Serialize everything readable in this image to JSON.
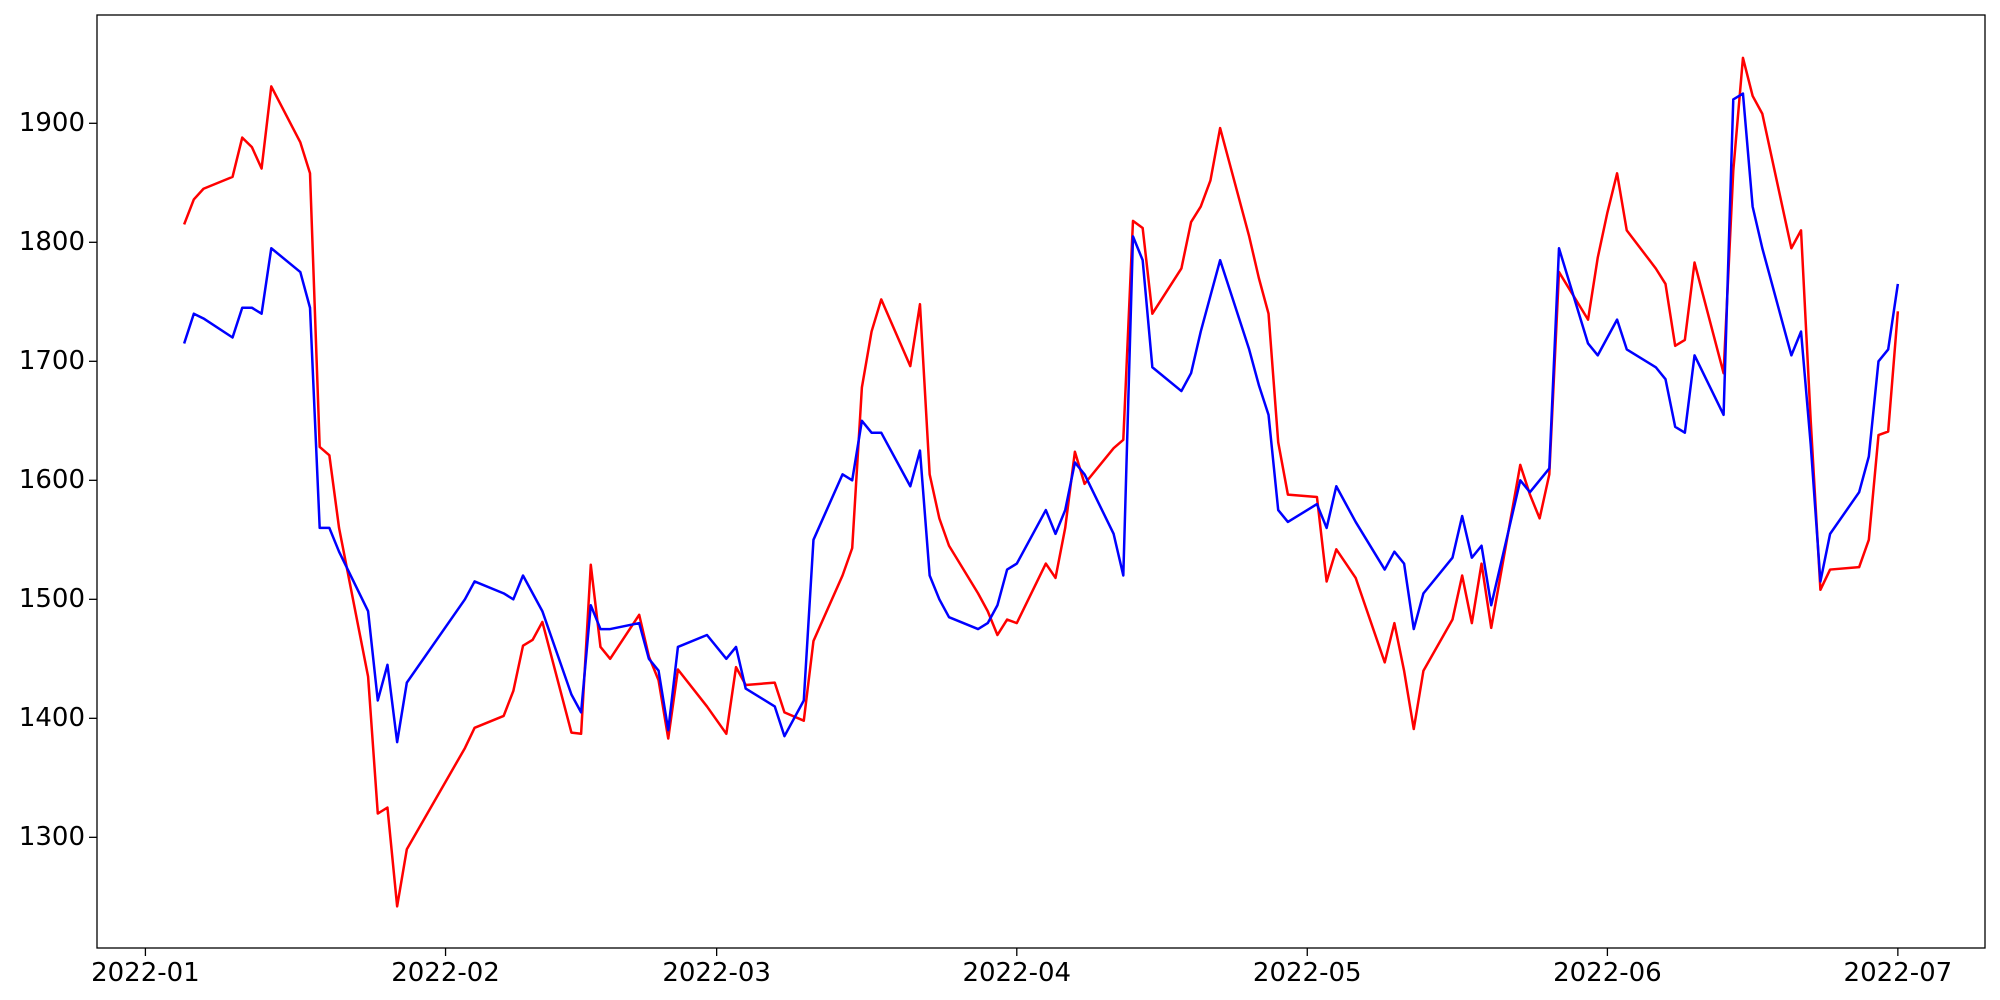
{
  "chart_data": {
    "type": "line",
    "x": [
      "2022-01-05",
      "2022-01-06",
      "2022-01-07",
      "2022-01-10",
      "2022-01-11",
      "2022-01-12",
      "2022-01-13",
      "2022-01-14",
      "2022-01-17",
      "2022-01-18",
      "2022-01-19",
      "2022-01-20",
      "2022-01-21",
      "2022-01-24",
      "2022-01-25",
      "2022-01-26",
      "2022-01-27",
      "2022-01-28",
      "2022-02-03",
      "2022-02-04",
      "2022-02-07",
      "2022-02-08",
      "2022-02-09",
      "2022-02-10",
      "2022-02-11",
      "2022-02-14",
      "2022-02-15",
      "2022-02-16",
      "2022-02-17",
      "2022-02-18",
      "2022-02-21",
      "2022-02-22",
      "2022-02-23",
      "2022-02-24",
      "2022-02-25",
      "2022-02-28",
      "2022-03-02",
      "2022-03-03",
      "2022-03-04",
      "2022-03-07",
      "2022-03-08",
      "2022-03-10",
      "2022-03-11",
      "2022-03-14",
      "2022-03-15",
      "2022-03-16",
      "2022-03-17",
      "2022-03-18",
      "2022-03-21",
      "2022-03-22",
      "2022-03-23",
      "2022-03-24",
      "2022-03-25",
      "2022-03-28",
      "2022-03-29",
      "2022-03-30",
      "2022-03-31",
      "2022-04-01",
      "2022-04-04",
      "2022-04-05",
      "2022-04-06",
      "2022-04-07",
      "2022-04-08",
      "2022-04-11",
      "2022-04-12",
      "2022-04-13",
      "2022-04-14",
      "2022-04-15",
      "2022-04-18",
      "2022-04-19",
      "2022-04-20",
      "2022-04-21",
      "2022-04-22",
      "2022-04-25",
      "2022-04-26",
      "2022-04-27",
      "2022-04-28",
      "2022-04-29",
      "2022-05-02",
      "2022-05-03",
      "2022-05-04",
      "2022-05-05",
      "2022-05-06",
      "2022-05-09",
      "2022-05-10",
      "2022-05-11",
      "2022-05-12",
      "2022-05-13",
      "2022-05-16",
      "2022-05-17",
      "2022-05-18",
      "2022-05-19",
      "2022-05-20",
      "2022-05-23",
      "2022-05-24",
      "2022-05-25",
      "2022-05-26",
      "2022-05-27",
      "2022-05-30",
      "2022-05-31",
      "2022-06-01",
      "2022-06-02",
      "2022-06-03",
      "2022-06-06",
      "2022-06-07",
      "2022-06-08",
      "2022-06-09",
      "2022-06-10",
      "2022-06-13",
      "2022-06-14",
      "2022-06-15",
      "2022-06-16",
      "2022-06-17",
      "2022-06-20",
      "2022-06-21",
      "2022-06-22",
      "2022-06-23",
      "2022-06-24",
      "2022-06-27",
      "2022-06-28",
      "2022-06-29",
      "2022-06-30",
      "2022-07-01"
    ],
    "series": [
      {
        "color": "red",
        "values": [
          1815,
          1836,
          1845,
          1855,
          1888,
          1880,
          1862,
          1931,
          1884,
          1858,
          1628,
          1621,
          1560,
          1435,
          1320,
          1325,
          1242,
          1290,
          1375,
          1392,
          1402,
          1423,
          1461,
          1466,
          1481,
          1388,
          1387,
          1529,
          1460,
          1450,
          1487,
          1452,
          1432,
          1383,
          1441,
          1410,
          1387,
          1443,
          1428,
          1430,
          1405,
          1398,
          1465,
          1520,
          1543,
          1678,
          1725,
          1752,
          1696,
          1748,
          1605,
          1568,
          1545,
          1505,
          1490,
          1470,
          1483,
          1480,
          1530,
          1518,
          1560,
          1624,
          1597,
          1627,
          1634,
          1818,
          1812,
          1740,
          1778,
          1817,
          1830,
          1852,
          1896,
          1805,
          1770,
          1740,
          1632,
          1588,
          1586,
          1515,
          1542,
          1530,
          1518,
          1447,
          1480,
          1440,
          1391,
          1440,
          1483,
          1520,
          1480,
          1530,
          1476,
          1613,
          1588,
          1568,
          1605,
          1775,
          1735,
          1787,
          1825,
          1858,
          1810,
          1778,
          1765,
          1713,
          1718,
          1783,
          1690,
          1860,
          1955,
          1923,
          1908,
          1795,
          1810,
          1650,
          1508,
          1525,
          1527,
          1550,
          1638,
          1641,
          1742
        ]
      },
      {
        "color": "blue",
        "values": [
          1715,
          1740,
          1736,
          1720,
          1745,
          1745,
          1740,
          1795,
          1775,
          1745,
          1560,
          1560,
          1540,
          1490,
          1415,
          1445,
          1380,
          1430,
          1500,
          1515,
          1505,
          1500,
          1520,
          1505,
          1490,
          1420,
          1405,
          1495,
          1475,
          1475,
          1480,
          1450,
          1440,
          1390,
          1460,
          1470,
          1450,
          1460,
          1425,
          1410,
          1385,
          1415,
          1550,
          1605,
          1600,
          1650,
          1640,
          1640,
          1595,
          1625,
          1520,
          1500,
          1485,
          1475,
          1480,
          1495,
          1525,
          1530,
          1575,
          1555,
          1575,
          1615,
          1605,
          1555,
          1520,
          1805,
          1785,
          1695,
          1675,
          1690,
          1725,
          1755,
          1785,
          1710,
          1680,
          1655,
          1575,
          1565,
          1580,
          1560,
          1595,
          1580,
          1565,
          1525,
          1540,
          1530,
          1475,
          1505,
          1535,
          1570,
          1535,
          1545,
          1495,
          1600,
          1590,
          1600,
          1610,
          1795,
          1715,
          1705,
          1720,
          1735,
          1710,
          1695,
          1685,
          1645,
          1640,
          1705,
          1655,
          1920,
          1925,
          1830,
          1795,
          1705,
          1725,
          1630,
          1515,
          1555,
          1590,
          1620,
          1700,
          1710,
          1765
        ]
      }
    ],
    "xlim": [
      "2021-12-27",
      "2022-07-10"
    ],
    "xticks": [
      {
        "value": "2022-01-01",
        "label": "2022-01"
      },
      {
        "value": "2022-02-01",
        "label": "2022-02"
      },
      {
        "value": "2022-03-01",
        "label": "2022-03"
      },
      {
        "value": "2022-04-01",
        "label": "2022-04"
      },
      {
        "value": "2022-05-01",
        "label": "2022-05"
      },
      {
        "value": "2022-06-01",
        "label": "2022-06"
      },
      {
        "value": "2022-07-01",
        "label": "2022-07"
      }
    ],
    "ylim": [
      1207,
      1991
    ],
    "yticks": [
      1300,
      1400,
      1500,
      1600,
      1700,
      1800,
      1900
    ]
  }
}
